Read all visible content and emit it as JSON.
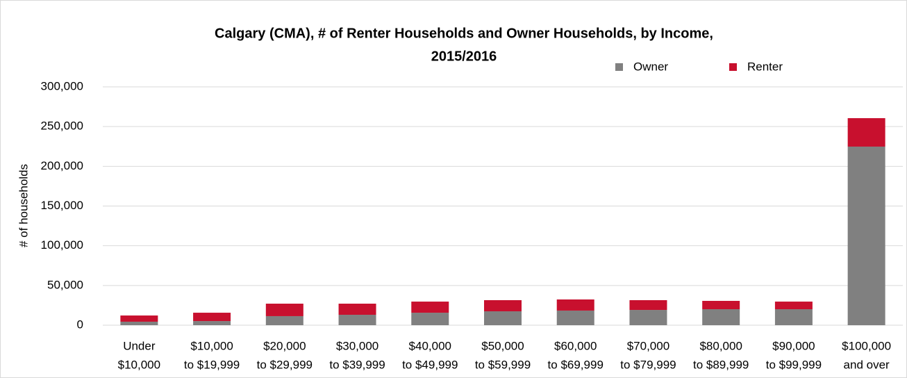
{
  "chart_data": {
    "type": "stacked_bar",
    "title": [
      "Calgary (CMA), # of Renter Households and Owner Households, by Income,",
      "2015/2016"
    ],
    "y_label": "# of households",
    "categories": [
      [
        "Under",
        "$10,000"
      ],
      [
        "$10,000",
        "to $19,999"
      ],
      [
        "$20,000",
        "to $29,999"
      ],
      [
        "$30,000",
        "to $39,999"
      ],
      [
        "$40,000",
        "to $49,999"
      ],
      [
        "$50,000",
        "to $59,999"
      ],
      [
        "$60,000",
        "to $69,999"
      ],
      [
        "$70,000",
        "to $79,999"
      ],
      [
        "$80,000",
        "to $89,999"
      ],
      [
        "$90,000",
        "to $99,999"
      ],
      [
        "$100,000",
        "and over"
      ]
    ],
    "series": [
      {
        "name": "Owner",
        "color": "#808080",
        "values": [
          4400,
          5200,
          11400,
          13100,
          15700,
          17500,
          18400,
          19200,
          20100,
          20100,
          224800
        ]
      },
      {
        "name": "Renter",
        "color": "#c8102e",
        "values": [
          7800,
          10500,
          15700,
          14000,
          14000,
          14000,
          14000,
          12300,
          10500,
          9600,
          35800
        ]
      }
    ],
    "ylim": [
      0,
      300000
    ],
    "yticks": [
      0,
      {
        "value": 50000,
        "label": "50,000"
      },
      {
        "value": 100000,
        "label": "100,000"
      },
      {
        "value": 150000,
        "label": "150,000"
      },
      {
        "value": 200000,
        "label": "200,000"
      },
      {
        "value": 250000,
        "label": "250,000"
      },
      {
        "value": 300000,
        "label": "300,000"
      }
    ],
    "grid": true,
    "legend": "top-right"
  }
}
